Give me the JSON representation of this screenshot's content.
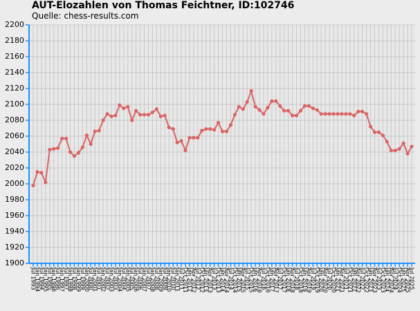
{
  "chart_data": {
    "type": "line",
    "title": "AUT-Elozahlen von Thomas Feichtner, ID:102746",
    "subtitle": "Quelle: chess-results.com",
    "categories": [
      "Jul 1993",
      "Jan 1994",
      "Jul 1994",
      "Jan 1995",
      "Jul 1995",
      "Jan 1996",
      "Jul 1996",
      "Jan 1997",
      "Jul 1997",
      "Jan 1998",
      "Jul 1998",
      "Jan 1999",
      "Jul 1999",
      "Jan 2000",
      "Jul 2000",
      "Jan 2001",
      "Jul 2001",
      "Jan 2002",
      "Jul 2002",
      "Jan 2003",
      "Jul 2003",
      "Jan 2004",
      "Jul 2004",
      "Jan 2005",
      "Jul 2005",
      "Jan 2006",
      "Jul 2006",
      "Jan 2007",
      "Jul 2007",
      "Jan 2008",
      "Jul 2008",
      "Jan 2009",
      "Jul 2009",
      "Jan 2010",
      "Jul 2010",
      "Jan 2011",
      "Jul 2011",
      "Oct 2011",
      "Jan 2012",
      "Apr 2012",
      "Jul 2012",
      "Oct 2012",
      "Jan 2013",
      "Apr 2013",
      "Jul 2013",
      "Oct 2013",
      "Jan 2014",
      "Apr 2014",
      "Jul 2014",
      "Oct 2014",
      "Jan 2015",
      "Apr 2015",
      "Jul 2015",
      "Oct 2015",
      "Jan 2016",
      "Apr 2016",
      "Jul 2016",
      "Oct 2016",
      "Jan 2017",
      "Apr 2017",
      "Jul 2017",
      "Oct 2017",
      "Jan 2018",
      "Apr 2018",
      "Jul 2018",
      "Oct 2018",
      "Jan 2019",
      "Apr 2019",
      "Jul 2019",
      "Oct 2019",
      "Jan 2020",
      "Apr 2020",
      "Jul 2020",
      "Oct 2020",
      "Jan 2021",
      "Apr 2021",
      "Jul 2021",
      "Oct 2021",
      "Jan 2022",
      "Apr 2022",
      "Jul 2022",
      "Oct 2022",
      "Jan 2023",
      "Apr 2023",
      "Jul 2023",
      "Oct 2023",
      "Jan 2024",
      "Apr 2024",
      "Jul 2024",
      "Oct 2024",
      "Jan 2025",
      "Apr 2025",
      "Jul 2025"
    ],
    "series": [
      {
        "name": "Elo",
        "color": "#d96464",
        "values": [
          1998,
          2015,
          2014,
          2002,
          2043,
          2044,
          2045,
          2057,
          2057,
          2040,
          2035,
          2039,
          2046,
          2061,
          2050,
          2066,
          2067,
          2080,
          2088,
          2085,
          2086,
          2099,
          2095,
          2097,
          2080,
          2092,
          2087,
          2087,
          2087,
          2090,
          2094,
          2085,
          2086,
          2071,
          2069,
          2052,
          2054,
          2042,
          2058,
          2058,
          2058,
          2067,
          2069,
          2069,
          2068,
          2077,
          2066,
          2066,
          2074,
          2087,
          2097,
          2094,
          2103,
          2117,
          2097,
          2093,
          2088,
          2096,
          2104,
          2104,
          2098,
          2092,
          2092,
          2086,
          2086,
          2092,
          2098,
          2098,
          2095,
          2093,
          2088,
          2088,
          2088,
          2088,
          2088,
          2088,
          2088,
          2088,
          2086,
          2091,
          2091,
          2088,
          2072,
          2065,
          2065,
          2061,
          2053,
          2042,
          2042,
          2044,
          2051,
          2038,
          2047
        ]
      }
    ],
    "ylim": [
      1900,
      2200
    ],
    "yticks": [
      1900,
      1920,
      1940,
      1960,
      1980,
      2000,
      2020,
      2040,
      2060,
      2080,
      2100,
      2120,
      2140,
      2160,
      2180,
      2200
    ],
    "grid": true
  }
}
